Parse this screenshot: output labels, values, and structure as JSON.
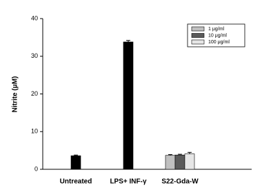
{
  "chart_data": {
    "type": "bar",
    "y_label": "Nitrite (μM)",
    "categories": [
      "Untreated",
      "LPS+ INF-γ",
      "S22-Gda-W"
    ],
    "values": [
      3.6,
      33.8,
      null
    ],
    "errors": [
      0.2,
      0.4,
      null
    ],
    "color": "#000000",
    "series": [
      {
        "name": "1 μg/ml",
        "color": "#c0c0c0",
        "values": [
          null,
          null,
          3.7
        ],
        "errors": [
          null,
          null,
          0.2
        ]
      },
      {
        "name": "10 μg/ml",
        "color": "#5a5a5a",
        "values": [
          null,
          null,
          3.8
        ],
        "errors": [
          null,
          null,
          0.2
        ]
      },
      {
        "name": "100 μg/ml",
        "color": "#e6e6e6",
        "values": [
          null,
          null,
          4.1
        ],
        "errors": [
          null,
          null,
          0.4
        ]
      }
    ],
    "ylim": [
      0,
      40
    ],
    "yticks": [
      0,
      10,
      20,
      30,
      40
    ],
    "legend": "upper right"
  }
}
